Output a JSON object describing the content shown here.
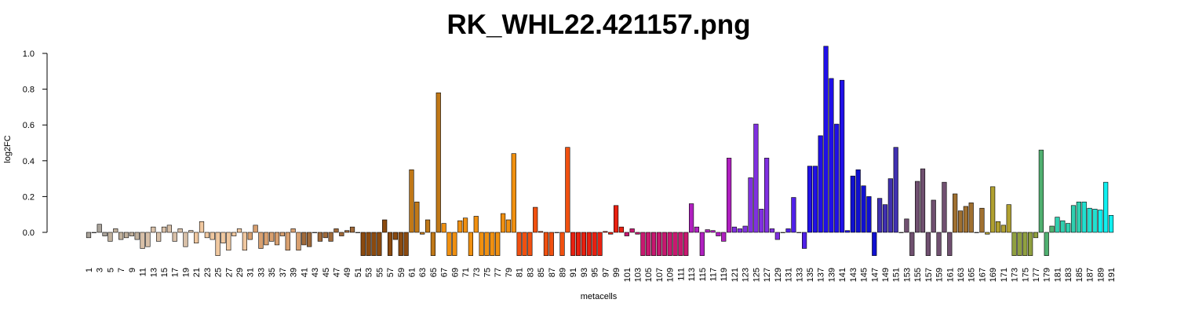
{
  "chart_data": {
    "type": "bar",
    "title": "RK_WHL22.421157.png",
    "x_label": "metacells",
    "y_label": "log2FC",
    "categories": [
      "1",
      null,
      "3",
      null,
      "5",
      null,
      "7",
      null,
      "9",
      null,
      "11",
      null,
      "13",
      null,
      "15",
      null,
      "17",
      null,
      "19",
      null,
      "21",
      null,
      "23",
      null,
      "25",
      null,
      "27",
      null,
      "29",
      null,
      "31",
      null,
      "33",
      null,
      "35",
      null,
      "37",
      null,
      "39",
      null,
      "41",
      null,
      "43",
      null,
      "45",
      null,
      "47",
      null,
      "49",
      null,
      "51",
      null,
      "53",
      null,
      "55",
      null,
      "57",
      null,
      "59",
      null,
      "61",
      null,
      "63",
      null,
      "65",
      null,
      "67",
      null,
      "69",
      null,
      "71",
      null,
      "73",
      null,
      "75",
      null,
      "77",
      null,
      "79",
      null,
      "81",
      null,
      "83",
      null,
      "85",
      null,
      "87",
      null,
      "89",
      null,
      "91",
      null,
      "93",
      null,
      "95",
      null,
      "97",
      null,
      "99",
      null,
      "101",
      null,
      "103",
      null,
      "105",
      null,
      "107",
      null,
      "109",
      null,
      "111",
      null,
      "113",
      null,
      "115",
      null,
      "117",
      null,
      "119",
      null,
      "121",
      null,
      "123",
      null,
      "125",
      null,
      "127",
      null,
      "129",
      null,
      "131",
      null,
      "133",
      null,
      "135",
      null,
      "137",
      null,
      "139",
      null,
      "141",
      null,
      "143",
      null,
      "145",
      null,
      "147",
      null,
      "149",
      null,
      "151",
      null,
      "153",
      null,
      "155",
      null,
      "157",
      null,
      "159",
      null,
      "161",
      null,
      "163",
      null,
      "165",
      null,
      "167",
      null,
      "169",
      null,
      "171",
      null,
      "173",
      null,
      "175",
      null,
      "177",
      null,
      "179",
      null,
      "181",
      null,
      "183",
      null,
      "185",
      null,
      "187",
      null,
      "189",
      null,
      "191"
    ],
    "values": [
      -0.03,
      0,
      0.045,
      -0.02,
      -0.05,
      0.02,
      -0.04,
      -0.03,
      -0.02,
      -0.04,
      -0.09,
      -0.08,
      0.03,
      -0.05,
      0.03,
      0.04,
      -0.05,
      0.02,
      -0.08,
      0.01,
      -0.06,
      0.06,
      -0.03,
      -0.04,
      -0.13,
      -0.06,
      -0.1,
      -0.02,
      0.02,
      -0.1,
      -0.04,
      0.04,
      -0.09,
      -0.07,
      -0.05,
      -0.07,
      -0.02,
      -0.1,
      0.02,
      -0.1,
      -0.07,
      -0.08,
      0,
      -0.05,
      -0.03,
      -0.05,
      0.02,
      -0.02,
      0.01,
      0.03,
      0,
      -0.13,
      -0.13,
      -0.13,
      -0.13,
      0.07,
      -0.13,
      -0.04,
      -0.13,
      -0.13,
      0.35,
      0.17,
      -0.01,
      0.07,
      -0.13,
      0.78,
      0.05,
      -0.13,
      -0.13,
      0.065,
      0.08,
      -0.13,
      0.09,
      -0.13,
      -0.13,
      -0.13,
      -0.13,
      0.105,
      0.07,
      0.44,
      -0.13,
      -0.13,
      -0.13,
      0.14,
      0.005,
      -0.13,
      -0.13,
      0,
      -0.13,
      0.475,
      -0.13,
      -0.13,
      -0.13,
      -0.13,
      -0.13,
      -0.13,
      0.005,
      -0.01,
      0.15,
      0.03,
      -0.02,
      0.02,
      -0.01,
      -0.13,
      -0.13,
      -0.13,
      -0.13,
      -0.13,
      -0.13,
      -0.13,
      -0.13,
      -0.13,
      0.16,
      0.03,
      -0.13,
      0.015,
      0.01,
      -0.02,
      -0.05,
      0.415,
      0.03,
      0.02,
      0.035,
      0.305,
      0.605,
      0.13,
      0.415,
      0.02,
      -0.04,
      0,
      0.02,
      0.195,
      0,
      -0.09,
      0.37,
      0.37,
      0.54,
      1.04,
      0.86,
      0.605,
      0.85,
      0.01,
      0.315,
      0.35,
      0.26,
      0.2,
      -0.13,
      0.19,
      0.155,
      0.3,
      0.475,
      0,
      0.075,
      -0.13,
      0.285,
      0.355,
      -0.13,
      0.18,
      -0.13,
      0.28,
      -0.13,
      0.215,
      0.12,
      0.145,
      0.165,
      0,
      0.135,
      -0.01,
      0.255,
      0.06,
      0.04,
      0.155,
      -0.13,
      -0.13,
      -0.13,
      -0.13,
      -0.03,
      0.46,
      -0.13,
      0.035,
      0.085,
      0.065,
      0.05,
      0.15,
      0.17,
      0.17,
      0.135,
      0.13,
      0.125,
      0.28,
      0.095
    ],
    "colors": [
      "#a9a39a",
      "#a9a39a",
      "#a9a39a",
      "#a9a39a",
      "#c0b09c",
      "#c0b09c",
      "#c0b09c",
      "#c0b09c",
      "#c0b09c",
      "#c0b09c",
      "#d8c0a8",
      "#d8c0a8",
      "#d8c0a8",
      "#d8c0a8",
      "#d8c0a8",
      "#d8c0a8",
      "#d8c0a8",
      "#d8c0a8",
      "#d8c0a8",
      "#d8c0a8",
      "#f0c8a0",
      "#f0c8a0",
      "#f0c8a0",
      "#f0c8a0",
      "#f0c8a0",
      "#f0c8a0",
      "#f0c8a0",
      "#f0c8a0",
      "#f0c8a0",
      "#f0c8a0",
      "#d8a070",
      "#d8a070",
      "#d8a070",
      "#d8a070",
      "#d8a070",
      "#d8a070",
      "#d8a070",
      "#d8a070",
      "#d8a070",
      "#d8a070",
      "#a06a3a",
      "#a06a3a",
      "#a06a3a",
      "#a06a3a",
      "#a06a3a",
      "#a06a3a",
      "#a06a3a",
      "#a06a3a",
      "#a06a3a",
      "#a06a3a",
      "#8b4a0f",
      "#8b4a0f",
      "#8b4a0f",
      "#8b4a0f",
      "#8b4a0f",
      "#8b4a0f",
      "#8b4a0f",
      "#8b4a0f",
      "#8b4a0f",
      "#8b4a0f",
      "#c07818",
      "#c07818",
      "#c07818",
      "#c07818",
      "#c07818",
      "#c07818",
      "#f09010",
      "#f09010",
      "#f09010",
      "#f09010",
      "#f09010",
      "#f09010",
      "#f09010",
      "#f09010",
      "#f09010",
      "#f09010",
      "#f09010",
      "#f09010",
      "#f09010",
      "#f09010",
      "#f05010",
      "#f05010",
      "#f05010",
      "#f05010",
      "#f05010",
      "#f05010",
      "#f05010",
      "#f05010",
      "#f05010",
      "#f05010",
      "#e82010",
      "#e82010",
      "#e82010",
      "#e82010",
      "#e82010",
      "#e82010",
      "#e82010",
      "#e82010",
      "#e82010",
      "#e82010",
      "#c81870",
      "#c81870",
      "#c81870",
      "#c81870",
      "#c81870",
      "#c81870",
      "#c81870",
      "#c81870",
      "#c81870",
      "#c81870",
      "#c81870",
      "#c81870",
      "#b020c0",
      "#b020c0",
      "#b020c0",
      "#b020c0",
      "#b020c0",
      "#b020c0",
      "#b020c0",
      "#b020c0",
      "#8030e0",
      "#8030e0",
      "#8030e0",
      "#8030e0",
      "#8030e0",
      "#8030e0",
      "#8030e0",
      "#8030e0",
      "#8030e0",
      "#8030e0",
      "#5020e8",
      "#5020e8",
      "#5020e8",
      "#5020e8",
      "#2010e8",
      "#2010e8",
      "#2010e8",
      "#2010e8",
      "#2010e8",
      "#2010e8",
      "#2010e8",
      "#2010e8",
      "#1010d0",
      "#1010d0",
      "#1010d0",
      "#1010d0",
      "#1010d0",
      "#4030b0",
      "#4030b0",
      "#4030b0",
      "#4030b0",
      "#4030b0",
      "#705070",
      "#705070",
      "#705070",
      "#705070",
      "#705070",
      "#705070",
      "#705070",
      "#705070",
      "#705070",
      "#a07030",
      "#a07030",
      "#a07030",
      "#a07030",
      "#a07030",
      "#a07030",
      "#b0a030",
      "#b0a030",
      "#b0a030",
      "#b0a030",
      "#b0a030",
      "#90a040",
      "#90a040",
      "#90a040",
      "#90a040",
      "#90a040",
      "#50b070",
      "#50b070",
      "#50b070",
      "#30d0b0",
      "#30d0b0",
      "#30d0b0",
      "#30d0b0",
      "#30d0b0",
      "#20e0d0",
      "#20e0d0",
      "#20e0d0",
      "#10f0f0",
      "#10f0f0",
      "#10f0f0"
    ],
    "ylim": [
      -0.19,
      1.04
    ],
    "yticks": [
      {
        "value": 0,
        "label": "0.0"
      },
      {
        "value": 0.2,
        "label": "0.2"
      },
      {
        "value": 0.4,
        "label": "0.4"
      },
      {
        "value": 0.6,
        "label": "0.6"
      },
      {
        "value": 0.8,
        "label": "0.8"
      },
      {
        "value": 1,
        "label": "1.0"
      }
    ],
    "grid": false
  }
}
